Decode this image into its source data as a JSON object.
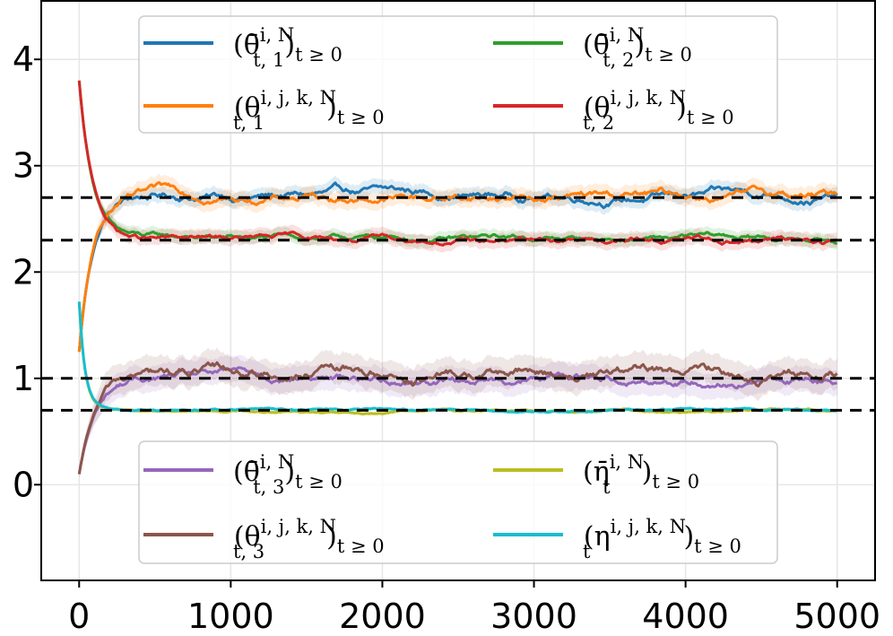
{
  "chart_data": {
    "type": "line",
    "title": "",
    "xlabel": "",
    "ylabel": "",
    "xlim": [
      -250,
      5250
    ],
    "ylim": [
      -0.9,
      4.55
    ],
    "grid": true,
    "x_ticks": [
      0,
      1000,
      2000,
      3000,
      4000,
      5000
    ],
    "x_tick_labels": [
      "0",
      "1000",
      "2000",
      "3000",
      "4000",
      "5000"
    ],
    "y_ticks": [
      0,
      1,
      2,
      3,
      4
    ],
    "y_tick_labels": [
      "0",
      "1",
      "2",
      "3",
      "4"
    ],
    "reference_lines": [
      2.7,
      2.3,
      1.0,
      0.7
    ],
    "legend_placement": [
      "top-center",
      "bottom-center"
    ],
    "series": [
      {
        "key": "theta_bar_1",
        "name": "(θ̄_{t,1}^{i,N})_{t≥0}",
        "color": "#1f77b4",
        "start": 1.25,
        "target": 2.72,
        "rate": 90,
        "noise": 0.03,
        "band": 0.07
      },
      {
        "key": "theta_bar_2",
        "name": "(θ̄_{t,2}^{i,N})_{t≥0}",
        "color": "#2ca02c",
        "start": 3.8,
        "target": 2.31,
        "rate": 90,
        "noise": 0.02,
        "band": 0.06
      },
      {
        "key": "theta_ijk_1",
        "name": "(θ_{t,1}^{i,j,k,N})_{t≥0}",
        "color": "#ff7f0e",
        "start": 1.25,
        "target": 2.71,
        "rate": 90,
        "noise": 0.03,
        "band": 0.08
      },
      {
        "key": "theta_ijk_2",
        "name": "(θ_{t,2}^{i,j,k,N})_{t≥0}",
        "color": "#d62728",
        "start": 3.8,
        "target": 2.3,
        "rate": 90,
        "noise": 0.02,
        "band": 0.07
      },
      {
        "key": "theta_bar_3",
        "name": "(θ̄_{t,3}^{i,N})_{t≥0}",
        "color": "#9467bd",
        "start": 0.1,
        "target": 1.01,
        "rate": 110,
        "noise": 0.03,
        "band": 0.12
      },
      {
        "key": "eta_bar",
        "name": "(η̄_t^{i,N})_{t≥0}",
        "color": "#bcbd22",
        "start": 1.72,
        "target": 0.7,
        "rate": 40,
        "noise": 0.008,
        "band": 0.02
      },
      {
        "key": "theta_ijk_3",
        "name": "(θ_{t,3}^{i,j,k,N})_{t≥0}",
        "color": "#8c564b",
        "start": 0.1,
        "target": 1.03,
        "rate": 110,
        "noise": 0.04,
        "band": 0.14
      },
      {
        "key": "eta_ijk",
        "name": "(η_t^{i,j,k,N})_{t≥0}",
        "color": "#17becf",
        "start": 1.72,
        "target": 0.7,
        "rate": 40,
        "noise": 0.008,
        "band": 0.02
      }
    ]
  },
  "legend_top": [
    {
      "sym": "(θ̄",
      "sup": "i, N",
      "sub": "t, 1",
      "tail": ")",
      "tsub": "t ≥ 0",
      "color": "#1f77b4"
    },
    {
      "sym": "(θ̄",
      "sup": "i, N",
      "sub": "t, 2",
      "tail": ")",
      "tsub": "t ≥ 0",
      "color": "#2ca02c"
    },
    {
      "sym": "(θ",
      "sup": "i, j, k, N",
      "sub": "t, 1",
      "tail": ")",
      "tsub": "t ≥ 0",
      "color": "#ff7f0e"
    },
    {
      "sym": "(θ",
      "sup": "i, j, k, N",
      "sub": "t, 2",
      "tail": ")",
      "tsub": "t ≥ 0",
      "color": "#d62728"
    }
  ],
  "legend_bottom": [
    {
      "sym": "(θ̄",
      "sup": "i, N",
      "sub": "t, 3",
      "tail": ")",
      "tsub": "t ≥ 0",
      "color": "#9467bd"
    },
    {
      "sym": "(η̄",
      "sup": "i, N",
      "sub": "t",
      "tail": ")",
      "tsub": "t ≥ 0",
      "color": "#bcbd22"
    },
    {
      "sym": "(θ",
      "sup": "i, j, k, N",
      "sub": "t, 3",
      "tail": ")",
      "tsub": "t ≥ 0",
      "color": "#8c564b"
    },
    {
      "sym": "(η",
      "sup": "i, j, k, N",
      "sub": "t",
      "tail": ")",
      "tsub": "t ≥ 0",
      "color": "#17becf"
    }
  ]
}
